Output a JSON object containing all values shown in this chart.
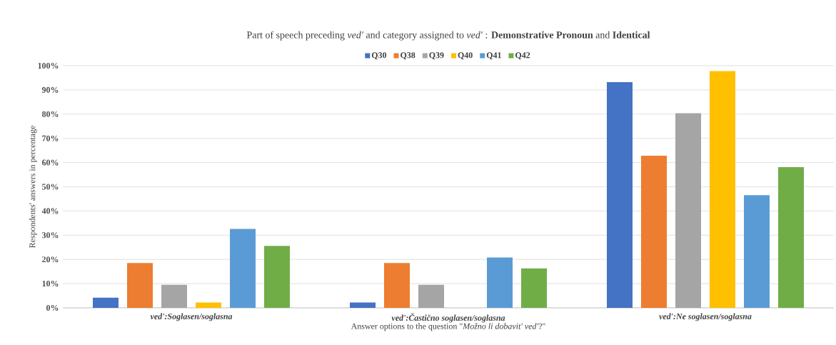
{
  "chart_data": {
    "type": "bar",
    "title": "Part of speech preceding *ved'* and category assigned to *ved'* : **Demonstrative Pronoun** and **Identical**",
    "xlabel": "Answer options to the question \"*Možno li dobavit' ved'*?\"",
    "ylabel": "Respondents' answers in percentage",
    "categories": [
      "ved':Soglasen/soglasna",
      "ved':Častično soglasen/soglasna",
      "ved':Ne soglasen/soglasna"
    ],
    "series": [
      {
        "name": "Q30",
        "color": "#4472c4",
        "values": [
          4.2,
          2.2,
          93.2
        ]
      },
      {
        "name": "Q38",
        "color": "#ed7d31",
        "values": [
          18.5,
          18.5,
          62.8
        ]
      },
      {
        "name": "Q39",
        "color": "#a5a5a5",
        "values": [
          9.5,
          9.5,
          80.4
        ]
      },
      {
        "name": "Q40",
        "color": "#ffc000",
        "values": [
          2.2,
          0,
          97.8
        ]
      },
      {
        "name": "Q41",
        "color": "#5b9bd5",
        "values": [
          32.6,
          20.8,
          46.5
        ]
      },
      {
        "name": "Q42",
        "color": "#70ad47",
        "values": [
          25.6,
          16.3,
          58.1
        ]
      }
    ],
    "ylim": [
      0,
      100
    ],
    "yticks": [
      {
        "value": 0,
        "label": "0%"
      },
      {
        "value": 10,
        "label": "10%"
      },
      {
        "value": 20,
        "label": "20%"
      },
      {
        "value": 30,
        "label": "30%"
      },
      {
        "value": 40,
        "label": "40%"
      },
      {
        "value": 50,
        "label": "50%"
      },
      {
        "value": 60,
        "label": "60%"
      },
      {
        "value": 70,
        "label": "70%"
      },
      {
        "value": 80,
        "label": "80%"
      },
      {
        "value": 90,
        "label": "90%"
      },
      {
        "value": 100,
        "label": "100%"
      }
    ],
    "grid": "y",
    "legend": "top"
  }
}
